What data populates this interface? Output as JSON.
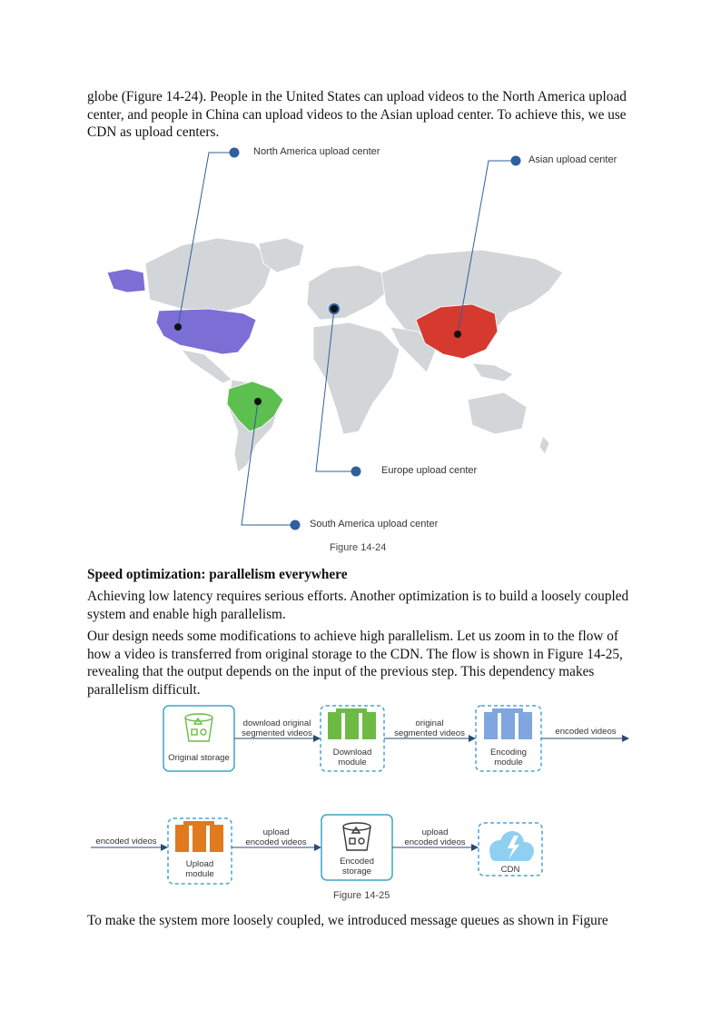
{
  "paragraphs": {
    "intro": "globe (Figure 14-24). People in the United States can upload videos to the North America upload center, and people in China can upload videos to the Asian upload center. To achieve this, we use CDN as upload centers.",
    "section_heading": "Speed optimization: parallelism everywhere",
    "p1": "Achieving low latency requires serious efforts. Another optimization is to build a loosely coupled system and enable high parallelism.",
    "p2": "Our design needs some modifications to achieve high parallelism. Let us zoom in to the flow of how a video is transferred from original storage to the CDN. The flow is shown in Figure 14-25, revealing that the output depends on the input of the previous step. This dependency makes parallelism difficult.",
    "p3": "To make the system more loosely coupled, we introduced message queues as shown in Figure"
  },
  "figure_14_24": {
    "caption": "Figure 14-24",
    "labels": {
      "north_america": "North America upload center",
      "asian": "Asian upload center",
      "europe": "Europe upload center",
      "south_america": "South America upload center"
    },
    "colors": {
      "north_america": "#7b6fd6",
      "china": "#d63a2f",
      "brazil": "#5cbf4f",
      "land": "#d3d6d8",
      "leader": "#2f5f9e"
    }
  },
  "figure_14_25": {
    "caption": "Figure 14-25",
    "row1": {
      "original_storage": "Original storage",
      "edge1_line1": "download original",
      "edge1_line2": "segmented videos",
      "download_module_line1": "Download",
      "download_module_line2": "module",
      "edge2_line1": "original",
      "edge2_line2": "segmented videos",
      "encoding_module_line1": "Encoding",
      "encoding_module_line2": "module",
      "edge3": "encoded videos"
    },
    "row2": {
      "edge0": "encoded videos",
      "upload_module_line1": "Upload",
      "upload_module_line2": "module",
      "edge1_line1": "upload",
      "edge1_line2": "encoded videos",
      "encoded_storage_line1": "Encoded",
      "encoded_storage_line2": "storage",
      "edge2_line1": "upload",
      "edge2_line2": "encoded videos",
      "cdn": "CDN"
    },
    "colors": {
      "storage_border": "#3aa6c8",
      "dashed_border": "#4aa3d6",
      "download_servers": "#6dbb45",
      "encoding_servers": "#7fa6de",
      "upload_servers": "#e07a1f",
      "cloud": "#8fd0f0",
      "arrow": "#2b4a75"
    }
  }
}
